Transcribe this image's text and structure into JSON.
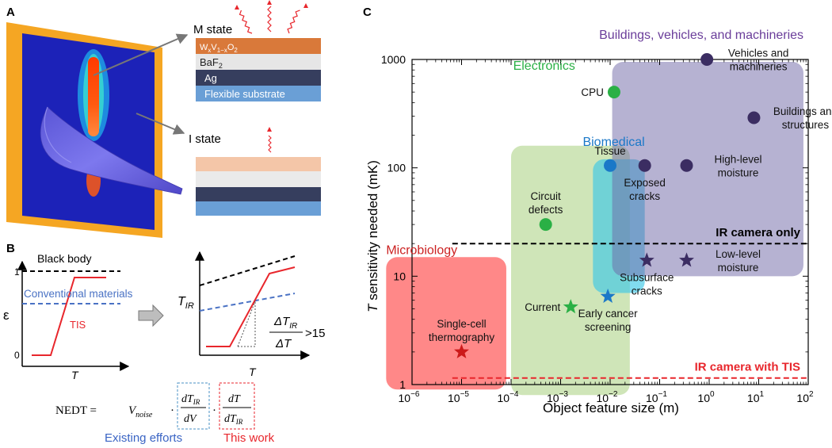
{
  "panel_a": {
    "label": "A",
    "m_state": "M state",
    "i_state": "I state",
    "layers": {
      "wvo2": "W",
      "wvo2_sub_x": "x",
      "wvo2_v": "V",
      "wvo2_sub_1x": "1−x",
      "wvo2_o": "O",
      "wvo2_sub_2": "2",
      "baf2": "BaF",
      "baf2_sub": "2",
      "ag": "Ag",
      "substrate": "Flexible substrate"
    },
    "colors": {
      "wvo2": "#d9793a",
      "baf2": "#e6e6e6",
      "ag": "#363e5e",
      "substrate": "#6a9fd6",
      "board": "#f5a623",
      "board_inner": "#1c22b8",
      "film": "#6f6ae6"
    }
  },
  "panel_b": {
    "label": "B",
    "left": {
      "black_body": "Black body",
      "conventional": "Conventional  materials",
      "tis": "TIS",
      "y_axis": "ε",
      "x_axis": "T",
      "tick_1": "1",
      "tick_0": "0"
    },
    "right": {
      "y_axis": "T",
      "y_sub": "IR",
      "x_axis": "T",
      "ratio_num": "ΔT",
      "ratio_num_sub": "IR",
      "ratio_den": "ΔT",
      "ratio_cmp": ">15"
    },
    "equation": {
      "lhs": "NEDT = ",
      "v": "V",
      "v_sub": "noise",
      "dot": "·",
      "f1_num": "dT",
      "f1_num_sub": "IR",
      "f1_den": "dV",
      "f2_num": "dT",
      "f2_den": "dT",
      "f2_den_sub": "IR"
    },
    "existing_efforts": "Existing efforts",
    "this_work": "This work",
    "colors": {
      "black": "#000000",
      "conventional": "#4a72c4",
      "tis": "#e8262c",
      "existing": "#3a64c4",
      "this_work": "#e8262c"
    }
  },
  "chart_data": {
    "type": "scatter",
    "panel_label": "C",
    "xlabel": "Object feature size (m)",
    "ylabel_italic": "T",
    "ylabel_rest": " sensitivity needed (mK)",
    "x_scale": "log",
    "y_scale": "log",
    "xlim": [
      -6,
      2
    ],
    "ylim": [
      0,
      3
    ],
    "x_ticks": [
      {
        "exp": -6,
        "base": "10",
        "sup": "−6"
      },
      {
        "exp": -5,
        "base": "10",
        "sup": "−5"
      },
      {
        "exp": -4,
        "base": "10",
        "sup": "−4"
      },
      {
        "exp": -3,
        "base": "10",
        "sup": "−3"
      },
      {
        "exp": -2,
        "base": "10",
        "sup": "−2"
      },
      {
        "exp": -1,
        "base": "10",
        "sup": "−1"
      },
      {
        "exp": 0,
        "base": "10",
        "sup": "0"
      },
      {
        "exp": 1,
        "base": "10",
        "sup": "1"
      },
      {
        "exp": 2,
        "base": "10",
        "sup": "2"
      }
    ],
    "y_ticks": [
      {
        "value": 1,
        "label": "1"
      },
      {
        "value": 10,
        "label": "10"
      },
      {
        "value": 100,
        "label": "100"
      },
      {
        "value": 1000,
        "label": "1000"
      }
    ],
    "regions": [
      {
        "name": "Microbiology",
        "x": [
          3e-07,
          8e-05
        ],
        "y": [
          0.9,
          15
        ],
        "color": "#ff5a5a",
        "opacity": 0.72
      },
      {
        "name": "Electronics",
        "x": [
          0.0001,
          0.025
        ],
        "y": [
          0.8,
          160
        ],
        "color": "#a8cf7e",
        "opacity": 0.55
      },
      {
        "name": "Biomedical",
        "x": [
          0.0045,
          0.05
        ],
        "y": [
          7,
          120
        ],
        "color": "#3ec8e6",
        "opacity": 0.65
      },
      {
        "name": "Buildings, vehicles, and machineries",
        "x": [
          0.011,
          80
        ],
        "y": [
          10,
          950
        ],
        "color": "#6e66a6",
        "opacity": 0.5
      }
    ],
    "region_labels": [
      {
        "text": "Microbiology",
        "x": 3e-07,
        "y": 16,
        "color": "#cc2222"
      },
      {
        "text": "Electronics",
        "x": 0.00011,
        "y": 800,
        "color": "#2ab045"
      },
      {
        "text": "Biomedical",
        "x": 0.0028,
        "y": 160,
        "color": "#1a78c8"
      },
      {
        "text": "Buildings, vehicles, and machineries",
        "x": 0.006,
        "y": 1550,
        "color": "#6a3d9a"
      }
    ],
    "points": [
      {
        "label": "CPU",
        "x": 0.012,
        "y": 500,
        "marker": "circle",
        "color": "#2ab045",
        "label_lines": [
          "CPU"
        ],
        "label_pos": "left"
      },
      {
        "label": "Circuit defects",
        "x": 0.0005,
        "y": 30,
        "marker": "circle",
        "color": "#2ab045",
        "label_lines": [
          "Circuit",
          "defects"
        ],
        "label_pos": "above"
      },
      {
        "label": "Tissue",
        "x": 0.01,
        "y": 105,
        "marker": "circle",
        "color": "#1a78c8",
        "label_lines": [
          "Tissue"
        ],
        "label_pos": "above"
      },
      {
        "label": "Exposed cracks",
        "x": 0.05,
        "y": 105,
        "marker": "circle",
        "color": "#3b2d62",
        "label_lines": [
          "Exposed",
          "cracks"
        ],
        "label_pos": "below"
      },
      {
        "label": "High-level moisture",
        "x": 0.35,
        "y": 105,
        "marker": "circle",
        "color": "#3b2d62",
        "label_lines": [
          "High-level",
          "moisture"
        ],
        "label_pos": "right"
      },
      {
        "label": "Vehicles and machineries",
        "x": 0.9,
        "y": 1000,
        "marker": "circle",
        "color": "#3b2d62",
        "label_lines": [
          "Vehicles and",
          "machineries"
        ],
        "label_pos": "right"
      },
      {
        "label": "Buildings and structures",
        "x": 8,
        "y": 290,
        "marker": "circle",
        "color": "#3b2d62",
        "label_lines": [
          "Buildings and",
          "structures"
        ],
        "label_pos": "right"
      },
      {
        "label": "Single-cell thermography",
        "x": 1e-05,
        "y": 2,
        "marker": "star",
        "color": "#cc1a1a",
        "label_lines": [
          "Single-cell",
          "thermography"
        ],
        "label_pos": "above"
      },
      {
        "label": "Current",
        "x": 0.0016,
        "y": 5.2,
        "marker": "star",
        "color": "#2ab045",
        "label_lines": [
          "Current"
        ],
        "label_pos": "left"
      },
      {
        "label": "Early cancer screening",
        "x": 0.009,
        "y": 6.5,
        "marker": "star",
        "color": "#1a78c8",
        "label_lines": [
          "Early cancer",
          "screening"
        ],
        "label_pos": "below"
      },
      {
        "label": "Subsurface cracks",
        "x": 0.055,
        "y": 14,
        "marker": "star",
        "color": "#3b2d62",
        "label_lines": [
          "Subsurface",
          "cracks"
        ],
        "label_pos": "below"
      },
      {
        "label": "Low-level moisture",
        "x": 0.35,
        "y": 14,
        "marker": "star",
        "color": "#3b2d62",
        "label_lines": [
          "Low-level",
          "moisture"
        ],
        "label_pos": "right"
      }
    ],
    "thresholds": [
      {
        "label": "IR camera only",
        "y": 20,
        "x_start": 6.5e-06,
        "x_end": 100,
        "color": "#000000"
      },
      {
        "label": "IR camera with TIS",
        "y": 1.15,
        "x_start": 6.5e-06,
        "x_end": 100,
        "color": "#e8262c"
      }
    ]
  }
}
